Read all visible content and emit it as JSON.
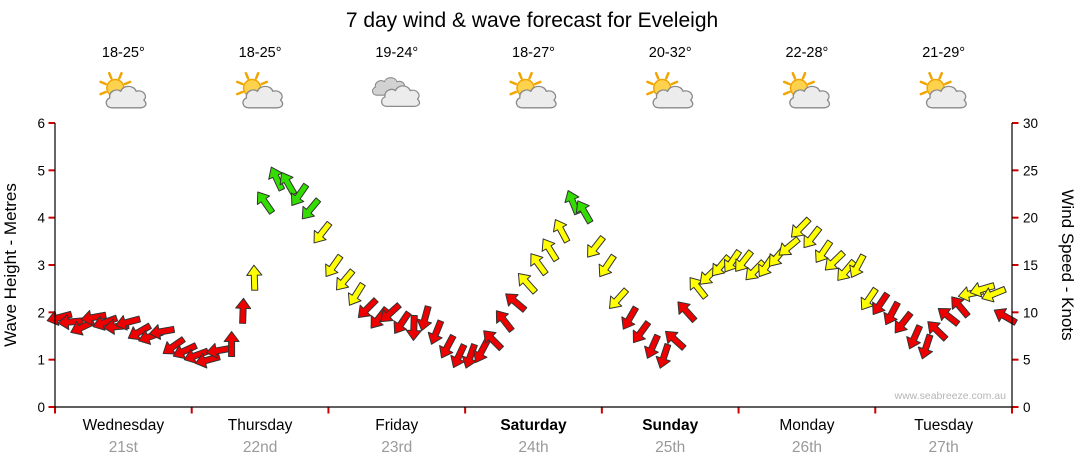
{
  "chart_data": {
    "type": "wind-arrows",
    "title": "7 day wind & wave forecast for Eveleigh",
    "ylabel_left": "Wave Height - Metres",
    "ylabel_right": "Wind Speed - Knots",
    "ylim_left": [
      0,
      6
    ],
    "ylim_right": [
      0,
      30
    ],
    "yticks_left": [
      0,
      1,
      2,
      3,
      4,
      5,
      6
    ],
    "yticks_right": [
      0,
      5,
      10,
      15,
      20,
      25,
      30
    ],
    "grid": false,
    "watermark": "www.seabreeze.com.au",
    "tick_color": "#cc0000",
    "axis_color": "#000000",
    "arrow_outline": "#333333",
    "speed_colors": {
      "red": "#ee0000",
      "yellow": "#ffff00",
      "green": "#33dd00"
    },
    "color_thresholds_knots": {
      "yellow_min": 11.5,
      "green_min": 19.5
    },
    "days": [
      {
        "name": "Wednesday",
        "date": "21st",
        "temp": "18-25°",
        "icon": "sun-cloud",
        "bold": false
      },
      {
        "name": "Thursday",
        "date": "22nd",
        "temp": "18-25°",
        "icon": "sun-cloud",
        "bold": false
      },
      {
        "name": "Friday",
        "date": "23rd",
        "temp": "19-24°",
        "icon": "cloud",
        "bold": false
      },
      {
        "name": "Saturday",
        "date": "24th",
        "temp": "18-27°",
        "icon": "sun-cloud",
        "bold": true
      },
      {
        "name": "Sunday",
        "date": "25th",
        "temp": "20-32°",
        "icon": "sun-cloud",
        "bold": true
      },
      {
        "name": "Monday",
        "date": "26th",
        "temp": "22-28°",
        "icon": "sun-cloud",
        "bold": false
      },
      {
        "name": "Tuesday",
        "date": "27th",
        "temp": "21-29°",
        "icon": "sun-cloud",
        "bold": false
      }
    ],
    "points_per_day": 12,
    "wind_knots_by_day": [
      [
        9.5,
        9,
        8.5,
        9.5,
        9,
        8.5,
        9,
        8,
        7.5,
        8,
        6.5,
        6
      ],
      [
        5.5,
        5,
        6,
        6.5,
        10,
        13.5,
        21.5,
        24,
        23.5,
        22.5,
        21,
        18.5
      ],
      [
        15,
        13.5,
        12,
        10.5,
        9.5,
        10,
        9,
        8.5,
        9.5,
        8,
        6.5,
        5.5
      ],
      [
        5.5,
        6,
        7,
        9,
        11,
        13,
        15,
        16.5,
        18.5,
        21.5,
        20.5,
        17
      ],
      [
        15,
        11.5,
        9.5,
        8,
        6.5,
        5.5,
        7,
        10,
        12.5,
        14,
        15,
        15.5
      ],
      [
        15.5,
        14.5,
        15,
        16,
        17,
        19,
        18,
        16.5,
        15.5,
        14.5,
        15,
        11.5
      ],
      [
        11,
        10,
        9,
        7.5,
        6.5,
        8,
        9.5,
        10.5,
        12,
        12.5,
        12,
        9.5
      ]
    ],
    "wind_dir_deg_by_day": [
      [
        195,
        185,
        205,
        190,
        200,
        185,
        195,
        210,
        200,
        190,
        215,
        205
      ],
      [
        200,
        195,
        190,
        90,
        88,
        92,
        125,
        115,
        120,
        235,
        230,
        232
      ],
      [
        235,
        230,
        238,
        225,
        232,
        222,
        236,
        268,
        255,
        248,
        242,
        245
      ],
      [
        250,
        242,
        135,
        128,
        140,
        132,
        126,
        122,
        118,
        112,
        120,
        232
      ],
      [
        236,
        228,
        240,
        234,
        246,
        252,
        138,
        132,
        128,
        224,
        230,
        236
      ],
      [
        232,
        226,
        236,
        230,
        220,
        226,
        232,
        236,
        224,
        230,
        242,
        236
      ],
      [
        236,
        242,
        232,
        246,
        252,
        136,
        142,
        130,
        192,
        196,
        202,
        150
      ]
    ]
  }
}
